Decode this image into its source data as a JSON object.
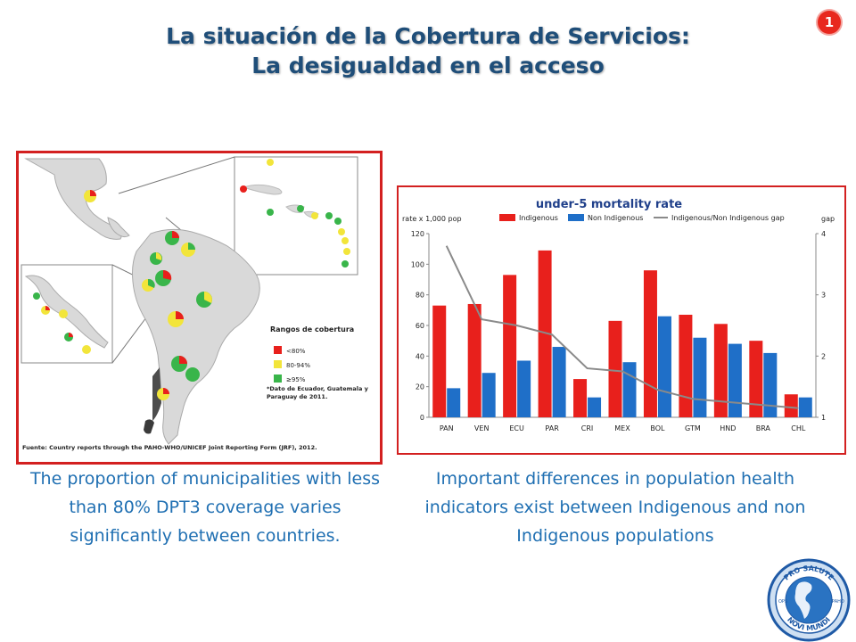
{
  "slide": {
    "title_line1": "La situación de la Cobertura de Servicios:",
    "title_line2": "La desigualdad en el acceso",
    "page_number": "1",
    "caption_left": "The proportion of municipalities with less than 80% DPT3 coverage varies significantly between countries.",
    "caption_right": "Important differences in population health indicators exist between Indigenous and non Indigenous populations"
  },
  "map": {
    "legend_title": "Rangos de cobertura",
    "legend_items": [
      {
        "label": "<80%",
        "color": "#e8201c"
      },
      {
        "label": "80-94%",
        "color": "#f2e53a"
      },
      {
        "label": "≥95%",
        "color": "#39b54a"
      }
    ],
    "legend_note": "*Dato de Ecuador, Guatemala y Paraguay de 2011.",
    "source": "Fuente: Country reports through the PAHO-WHO/UNICEF Joint Reporting Form (JRF), 2012."
  },
  "seal": {
    "text_top": "PRO SALUTE",
    "text_bottom": "NOVI MUNDI",
    "left_text": "OPS",
    "right_text": "PAHO"
  },
  "colors": {
    "indigenous": "#e8201c",
    "non_indigenous": "#1f6fc8",
    "gap": "#8a8a8a"
  },
  "chart_data": {
    "type": "bar",
    "title": "under-5 mortality rate",
    "ylabel": "rate x 1,000 pop",
    "y2label": "gap",
    "categories": [
      "PAN",
      "VEN",
      "ECU",
      "PAR",
      "CRI",
      "MEX",
      "BOL",
      "GTM",
      "HND",
      "BRA",
      "CHL"
    ],
    "series": [
      {
        "name": "Indigenous",
        "type": "bar",
        "values": [
          73,
          74,
          93,
          109,
          25,
          63,
          96,
          67,
          61,
          50,
          15
        ]
      },
      {
        "name": "Non Indigenous",
        "type": "bar",
        "values": [
          19,
          29,
          37,
          46,
          13,
          36,
          66,
          52,
          48,
          42,
          13
        ]
      },
      {
        "name": "Indigenous/Non Indigenous gap",
        "type": "line",
        "axis": "right",
        "values": [
          3.8,
          2.6,
          2.5,
          2.35,
          1.8,
          1.75,
          1.45,
          1.3,
          1.25,
          1.2,
          1.15
        ]
      }
    ],
    "ylim": [
      0,
      120
    ],
    "y2lim": [
      1,
      4
    ],
    "yticks": [
      0,
      20,
      40,
      60,
      80,
      100,
      120
    ],
    "y2ticks": [
      1,
      2,
      3,
      4
    ],
    "legend_position": "top",
    "grid": false
  }
}
